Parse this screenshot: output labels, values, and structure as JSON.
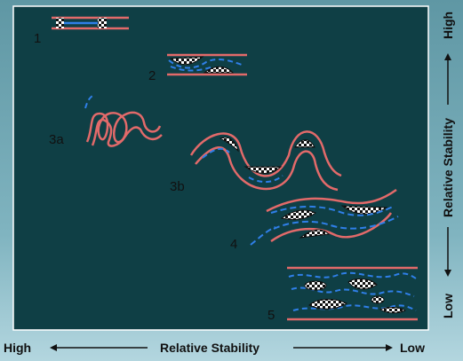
{
  "bottom_axis": {
    "left_label": "High",
    "center_label": "Relative Stability",
    "right_label": "Low"
  },
  "side_axis": {
    "top_label": "High",
    "center_label": "Relative Stability",
    "bottom_label": "Low"
  },
  "stages": [
    {
      "label": "1"
    },
    {
      "label": "2"
    },
    {
      "label": "3a"
    },
    {
      "label": "3b"
    },
    {
      "label": "4"
    },
    {
      "label": "5"
    }
  ],
  "colors": {
    "panel": "#0f3f45",
    "panel_border": "#ffffff",
    "red_strand": "#e26a6a",
    "blue_strand": "#2f7fe8",
    "arrow": "#111111"
  }
}
